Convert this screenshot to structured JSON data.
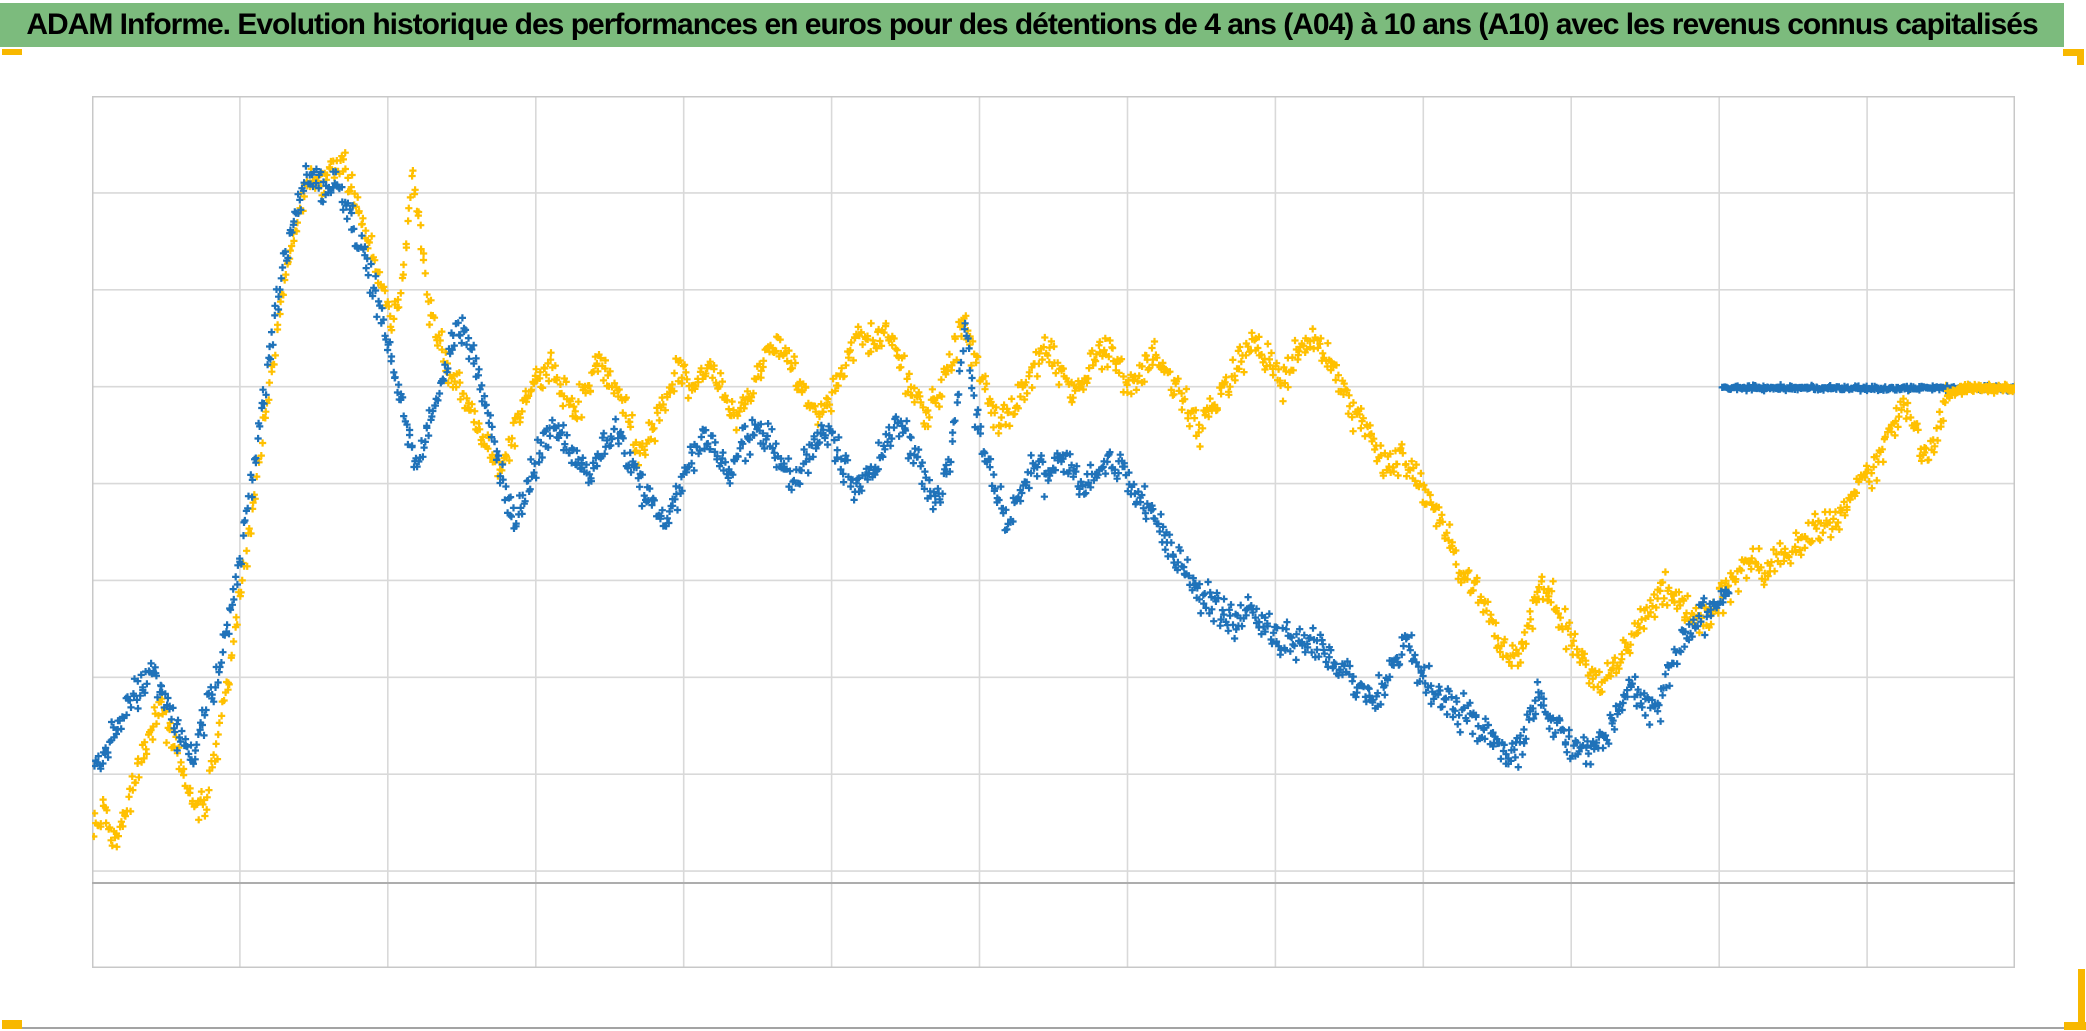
{
  "header": {
    "title": "ADAM Informe. Evolution historique des performances en euros pour des détentions de 4 ans (A04) à 10 ans (A10) avec les revenus connus capitalisés",
    "bg_color": "#7cbb7d",
    "text_color": "#000000"
  },
  "frame": {
    "accent_color": "#f8b800",
    "bottom_line_color": "#a3a3a3"
  },
  "chart_data": {
    "type": "scatter",
    "title": "",
    "legend": "none-visible",
    "marker": "plus",
    "units": "normalized_percent_of_plot_area (no axis tick labels are visible in the chart)",
    "axes": {
      "x_tick_labels_visible": false,
      "y_tick_labels_visible": false,
      "x_intervals": 13,
      "y_intervals": 9,
      "gridline_color": "#d9d9d9",
      "border_color": "#c8c8c8",
      "axis_line_color": "#adadad",
      "axis_line_y_pct": 9.75
    },
    "series": [
      {
        "name": "series_yellow",
        "color": "#FFC000",
        "seed": 77,
        "jitter": 1.9,
        "density": 1500,
        "points": [
          [
            0.1,
            15.6
          ],
          [
            0.6,
            19.3
          ],
          [
            1.0,
            14.3
          ],
          [
            1.6,
            17.2
          ],
          [
            2.1,
            20.6
          ],
          [
            2.8,
            25.0
          ],
          [
            3.4,
            30.2
          ],
          [
            4.0,
            27.5
          ],
          [
            4.6,
            23.6
          ],
          [
            5.1,
            20.2
          ],
          [
            5.5,
            17.0
          ],
          [
            6.0,
            20.4
          ],
          [
            6.4,
            24.4
          ],
          [
            6.9,
            30.7
          ],
          [
            7.4,
            37.6
          ],
          [
            8.0,
            46.8
          ],
          [
            8.6,
            57.1
          ],
          [
            9.3,
            67.4
          ],
          [
            9.9,
            77.2
          ],
          [
            10.5,
            84.1
          ],
          [
            11.0,
            88.6
          ],
          [
            11.4,
            91.3
          ],
          [
            12.0,
            89.4
          ],
          [
            12.5,
            91.5
          ],
          [
            13.0,
            92.0
          ],
          [
            13.5,
            89.4
          ],
          [
            14.0,
            86.4
          ],
          [
            14.6,
            81.8
          ],
          [
            15.1,
            77.2
          ],
          [
            15.6,
            74.1
          ],
          [
            16.0,
            76.6
          ],
          [
            16.4,
            84.6
          ],
          [
            16.7,
            91.7
          ],
          [
            17.1,
            83.5
          ],
          [
            17.5,
            76.0
          ],
          [
            18.0,
            72.0
          ],
          [
            18.6,
            68.6
          ],
          [
            19.2,
            65.7
          ],
          [
            19.9,
            62.8
          ],
          [
            20.6,
            59.4
          ],
          [
            21.2,
            57.3
          ],
          [
            21.8,
            60.6
          ],
          [
            22.5,
            64.6
          ],
          [
            23.2,
            67.4
          ],
          [
            23.8,
            68.8
          ],
          [
            24.4,
            66.3
          ],
          [
            25.1,
            63.4
          ],
          [
            25.8,
            66.9
          ],
          [
            26.4,
            69.5
          ],
          [
            27.1,
            66.9
          ],
          [
            27.8,
            63.1
          ],
          [
            28.5,
            59.6
          ],
          [
            29.2,
            61.7
          ],
          [
            29.8,
            65.7
          ],
          [
            30.6,
            68.6
          ],
          [
            31.3,
            66.3
          ],
          [
            32.0,
            69.2
          ],
          [
            32.8,
            66.5
          ],
          [
            33.5,
            63.1
          ],
          [
            34.2,
            65.7
          ],
          [
            34.9,
            69.2
          ],
          [
            35.6,
            71.8
          ],
          [
            36.3,
            69.2
          ],
          [
            37.0,
            66.1
          ],
          [
            37.8,
            62.8
          ],
          [
            38.5,
            65.7
          ],
          [
            39.2,
            69.7
          ],
          [
            39.9,
            72.9
          ],
          [
            40.6,
            71.4
          ],
          [
            41.2,
            73.4
          ],
          [
            41.9,
            70.6
          ],
          [
            42.6,
            66.1
          ],
          [
            43.4,
            62.8
          ],
          [
            44.1,
            66.1
          ],
          [
            44.8,
            70.3
          ],
          [
            45.3,
            73.7
          ],
          [
            45.9,
            70.0
          ],
          [
            46.6,
            65.4
          ],
          [
            47.3,
            61.9
          ],
          [
            48.0,
            65.1
          ],
          [
            48.8,
            68.3
          ],
          [
            49.5,
            71.1
          ],
          [
            50.2,
            68.6
          ],
          [
            51.0,
            65.7
          ],
          [
            51.7,
            68.3
          ],
          [
            52.4,
            71.1
          ],
          [
            53.1,
            69.5
          ],
          [
            53.9,
            66.3
          ],
          [
            54.6,
            68.3
          ],
          [
            55.3,
            70.6
          ],
          [
            56.1,
            68.0
          ],
          [
            56.8,
            65.1
          ],
          [
            57.5,
            61.9
          ],
          [
            58.2,
            64.0
          ],
          [
            59.0,
            67.2
          ],
          [
            59.7,
            70.0
          ],
          [
            60.4,
            71.8
          ],
          [
            61.2,
            69.7
          ],
          [
            61.9,
            66.9
          ],
          [
            62.6,
            69.5
          ],
          [
            63.3,
            71.8
          ],
          [
            64.1,
            70.3
          ],
          [
            64.9,
            67.2
          ],
          [
            65.5,
            64.2
          ],
          [
            66.2,
            62.3
          ],
          [
            66.9,
            59.6
          ],
          [
            67.5,
            57.3
          ],
          [
            68.1,
            58.5
          ],
          [
            68.8,
            56.2
          ],
          [
            69.5,
            53.9
          ],
          [
            70.1,
            51.1
          ],
          [
            70.7,
            48.2
          ],
          [
            71.4,
            45.4
          ],
          [
            72.1,
            42.8
          ],
          [
            72.7,
            39.7
          ],
          [
            73.3,
            36.7
          ],
          [
            73.8,
            35.1
          ],
          [
            74.4,
            36.7
          ],
          [
            74.9,
            40.8
          ],
          [
            75.4,
            44.3
          ],
          [
            75.9,
            42.4
          ],
          [
            76.4,
            39.7
          ],
          [
            77.1,
            37.0
          ],
          [
            77.8,
            34.4
          ],
          [
            78.4,
            32.1
          ],
          [
            79.0,
            33.9
          ],
          [
            79.7,
            36.2
          ],
          [
            80.4,
            39.0
          ],
          [
            81.0,
            41.3
          ],
          [
            81.6,
            43.6
          ],
          [
            82.3,
            42.2
          ],
          [
            83.0,
            40.5
          ],
          [
            83.6,
            39.7
          ],
          [
            84.3,
            41.3
          ],
          [
            84.9,
            43.1
          ],
          [
            85.6,
            45.1
          ],
          [
            86.3,
            46.6
          ],
          [
            87.1,
            45.4
          ],
          [
            87.8,
            47.0
          ],
          [
            88.5,
            48.2
          ],
          [
            89.2,
            49.3
          ],
          [
            90.0,
            50.5
          ],
          [
            90.7,
            51.4
          ],
          [
            91.4,
            53.1
          ],
          [
            92.0,
            56.0
          ],
          [
            92.6,
            57.1
          ],
          [
            93.1,
            59.6
          ],
          [
            93.7,
            61.9
          ],
          [
            94.1,
            63.8
          ],
          [
            94.4,
            64.2
          ],
          [
            94.8,
            61.9
          ],
          [
            95.2,
            59.2
          ],
          [
            95.5,
            58.0
          ],
          [
            95.9,
            60.6
          ],
          [
            96.2,
            64.2
          ],
          [
            96.5,
            65.6
          ]
        ]
      },
      {
        "name": "series_blue",
        "color": "#1F72B9",
        "seed": 41,
        "jitter": 1.9,
        "density": 1350,
        "points": [
          [
            0.1,
            22.7
          ],
          [
            0.8,
            25.6
          ],
          [
            1.7,
            29.4
          ],
          [
            2.5,
            32.1
          ],
          [
            3.1,
            34.2
          ],
          [
            3.8,
            30.7
          ],
          [
            4.6,
            26.7
          ],
          [
            5.2,
            24.1
          ],
          [
            5.9,
            28.7
          ],
          [
            6.7,
            34.7
          ],
          [
            7.3,
            42.2
          ],
          [
            7.9,
            49.7
          ],
          [
            8.5,
            58.8
          ],
          [
            9.1,
            68.6
          ],
          [
            9.8,
            78.3
          ],
          [
            10.4,
            85.2
          ],
          [
            11.0,
            89.2
          ],
          [
            11.6,
            90.6
          ],
          [
            12.1,
            88.6
          ],
          [
            12.7,
            90.0
          ],
          [
            13.3,
            87.5
          ],
          [
            13.9,
            82.9
          ],
          [
            14.6,
            78.3
          ],
          [
            15.1,
            73.7
          ],
          [
            15.7,
            68.8
          ],
          [
            16.3,
            62.3
          ],
          [
            16.9,
            58.0
          ],
          [
            17.4,
            61.7
          ],
          [
            18.1,
            66.3
          ],
          [
            18.7,
            71.4
          ],
          [
            19.2,
            73.2
          ],
          [
            19.9,
            70.3
          ],
          [
            20.7,
            62.8
          ],
          [
            21.5,
            54.2
          ],
          [
            22.0,
            50.8
          ],
          [
            22.6,
            54.8
          ],
          [
            23.3,
            59.4
          ],
          [
            24.0,
            62.3
          ],
          [
            24.6,
            60.6
          ],
          [
            25.3,
            57.7
          ],
          [
            25.9,
            56.0
          ],
          [
            26.5,
            59.4
          ],
          [
            27.2,
            61.7
          ],
          [
            27.9,
            58.8
          ],
          [
            28.5,
            56.0
          ],
          [
            29.1,
            53.1
          ],
          [
            29.8,
            50.8
          ],
          [
            30.5,
            54.8
          ],
          [
            31.1,
            58.8
          ],
          [
            31.7,
            61.1
          ],
          [
            32.4,
            59.4
          ],
          [
            33.1,
            57.1
          ],
          [
            33.8,
            59.4
          ],
          [
            34.5,
            62.3
          ],
          [
            35.2,
            60.6
          ],
          [
            35.9,
            57.7
          ],
          [
            36.6,
            56.0
          ],
          [
            37.2,
            58.8
          ],
          [
            38.0,
            61.7
          ],
          [
            38.6,
            60.0
          ],
          [
            39.3,
            57.1
          ],
          [
            40.0,
            54.8
          ],
          [
            40.7,
            57.7
          ],
          [
            41.4,
            60.6
          ],
          [
            42.0,
            62.8
          ],
          [
            42.6,
            60.0
          ],
          [
            43.3,
            56.5
          ],
          [
            44.0,
            53.7
          ],
          [
            44.6,
            58.3
          ],
          [
            45.1,
            66.3
          ],
          [
            45.4,
            74.5
          ],
          [
            45.8,
            66.3
          ],
          [
            46.3,
            59.4
          ],
          [
            47.0,
            54.8
          ],
          [
            47.6,
            51.4
          ],
          [
            48.3,
            54.8
          ],
          [
            48.9,
            57.7
          ],
          [
            49.6,
            56.0
          ],
          [
            50.3,
            58.8
          ],
          [
            51.0,
            57.1
          ],
          [
            51.6,
            54.8
          ],
          [
            52.3,
            57.1
          ],
          [
            52.9,
            58.8
          ],
          [
            53.6,
            56.5
          ],
          [
            54.3,
            54.2
          ],
          [
            55.0,
            52.5
          ],
          [
            55.7,
            49.7
          ],
          [
            56.3,
            47.4
          ],
          [
            57.1,
            44.5
          ],
          [
            57.9,
            42.2
          ],
          [
            58.7,
            40.8
          ],
          [
            59.4,
            39.3
          ],
          [
            60.2,
            40.5
          ],
          [
            61.0,
            39.0
          ],
          [
            61.8,
            37.8
          ],
          [
            62.6,
            36.7
          ],
          [
            63.4,
            37.6
          ],
          [
            64.3,
            35.9
          ],
          [
            65.2,
            33.9
          ],
          [
            65.9,
            32.1
          ],
          [
            66.6,
            30.7
          ],
          [
            67.2,
            32.5
          ],
          [
            67.9,
            35.9
          ],
          [
            68.4,
            36.7
          ],
          [
            69.1,
            33.9
          ],
          [
            69.7,
            31.9
          ],
          [
            70.4,
            30.7
          ],
          [
            71.0,
            29.4
          ],
          [
            71.7,
            28.7
          ],
          [
            72.3,
            27.3
          ],
          [
            73.0,
            26.1
          ],
          [
            73.6,
            24.4
          ],
          [
            74.2,
            23.9
          ],
          [
            74.8,
            29.0
          ],
          [
            75.2,
            31.0
          ],
          [
            75.8,
            29.0
          ],
          [
            76.4,
            27.3
          ],
          [
            77.1,
            26.1
          ],
          [
            77.8,
            25.2
          ],
          [
            78.4,
            26.7
          ],
          [
            79.0,
            28.4
          ],
          [
            79.7,
            30.7
          ],
          [
            80.2,
            32.1
          ],
          [
            80.9,
            30.2
          ],
          [
            81.4,
            29.4
          ],
          [
            82.1,
            34.4
          ],
          [
            82.6,
            37.0
          ],
          [
            83.2,
            39.0
          ],
          [
            83.8,
            40.5
          ],
          [
            84.4,
            41.9
          ],
          [
            85.1,
            42.5
          ]
        ]
      },
      {
        "name": "series_blue_flat_terminal",
        "color": "#1F72B9",
        "seed": 9,
        "jitter": 0.28,
        "density": 320,
        "points": [
          [
            84.8,
            66.5
          ],
          [
            100,
            66.5
          ]
        ]
      },
      {
        "name": "series_yellow_tail_overlay",
        "color": "#FFC000",
        "seed": 55,
        "jitter": 0.45,
        "density": 130,
        "points": [
          [
            96.5,
            65.8
          ],
          [
            97.2,
            66.4
          ],
          [
            98.0,
            66.5
          ],
          [
            99.0,
            66.5
          ],
          [
            100,
            66.5
          ]
        ]
      }
    ]
  }
}
